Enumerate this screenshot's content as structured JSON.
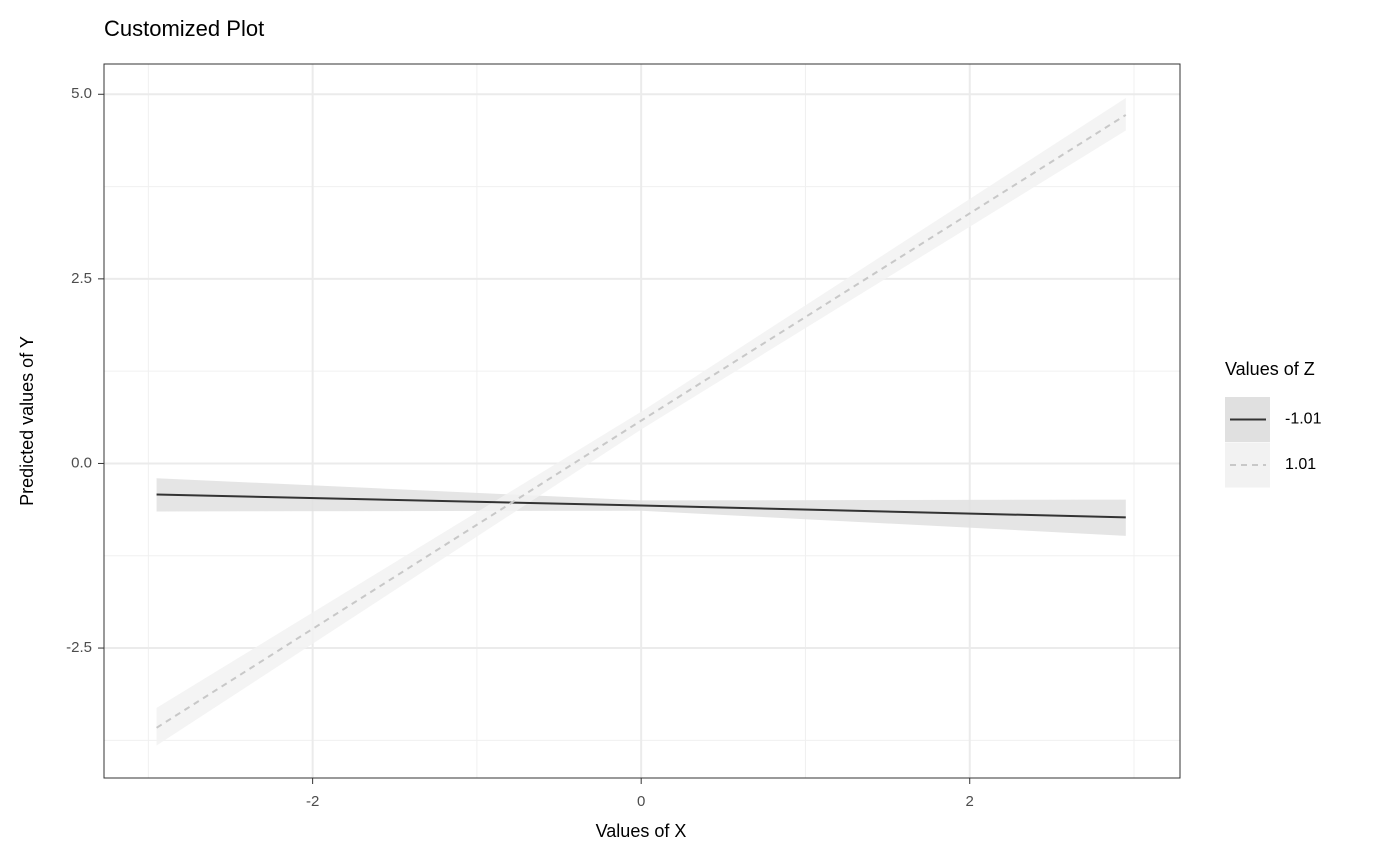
{
  "chart_data": {
    "type": "line",
    "title": "Customized Plot",
    "x_label": "Values of X",
    "y_label": "Predicted values of Y",
    "legend_title": "Values of Z",
    "legend_position": "right",
    "x": [
      -2.95,
      0,
      2.95
    ],
    "series": [
      {
        "name": "-1.01",
        "color": "#333333",
        "band_color": "#e0e0e0",
        "linestyle": "solid",
        "values": [
          -0.42,
          -0.57,
          -0.73
        ],
        "lower": [
          -0.65,
          -0.64,
          -0.98
        ],
        "upper": [
          -0.2,
          -0.5,
          -0.49
        ]
      },
      {
        "name": "1.01",
        "color": "#c8c8c8",
        "band_color": "#f2f2f2",
        "linestyle": "dashed",
        "values": [
          -3.58,
          0.58,
          4.72
        ],
        "lower": [
          -3.82,
          0.46,
          4.51
        ],
        "upper": [
          -3.31,
          0.7,
          4.95
        ]
      }
    ],
    "xlim": [
      -3.27,
      3.28
    ],
    "ylim": [
      -4.26,
      5.41
    ],
    "xticks": [
      -2,
      0,
      2
    ],
    "yticks": [
      {
        "value": -2.5,
        "label": "-2.5"
      },
      {
        "value": 0,
        "label": "0.0"
      },
      {
        "value": 2.5,
        "label": "2.5"
      },
      {
        "value": 5,
        "label": "5.0"
      }
    ],
    "x_minor_grid": [
      -3,
      -1,
      1,
      3
    ],
    "y_minor_grid": [
      -3.75,
      -1.25,
      1.25,
      3.75
    ],
    "grid": true
  }
}
